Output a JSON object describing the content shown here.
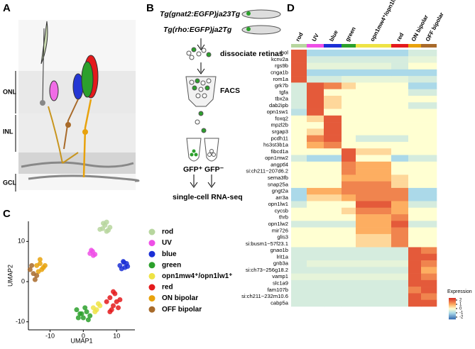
{
  "panel_labels": [
    "A",
    "B",
    "C",
    "D"
  ],
  "panel_a": {
    "layers": [
      "ONL",
      "INL",
      "GCL"
    ]
  },
  "panel_b": {
    "lines": [
      "Tg(gnat2:EGFP)ja23Tg",
      "Tg(rho:EGFP)ja2Tg"
    ],
    "steps": [
      "dissociate retinas",
      "FACS"
    ],
    "tubes": [
      "GFP⁺",
      "GFP⁻"
    ],
    "result": "single-cell RNA-seq"
  },
  "chart_data": [
    {
      "type": "scatter",
      "xlabel": "UMAP1",
      "ylabel": "UMAP2",
      "xlim": [
        -16.5,
        15.5
      ],
      "ylim": [
        -12,
        15
      ],
      "xticks": [
        -10,
        0,
        10
      ],
      "yticks": [
        -10,
        0,
        10
      ],
      "series": [
        {
          "name": "rod",
          "color": "#b7d69e",
          "x": [
            5,
            6,
            7,
            8,
            6.5,
            7.5,
            5.8,
            7
          ],
          "y": [
            13,
            14.5,
            12.5,
            13.5,
            14,
            12.8,
            13.2,
            14.8
          ]
        },
        {
          "name": "UV",
          "color": "#ee4fe6",
          "x": [
            2,
            2.8,
            3.5,
            3,
            2.4
          ],
          "y": [
            7,
            7.5,
            6.8,
            6.5,
            7.8
          ]
        },
        {
          "name": "blue",
          "color": "#1b2fd6",
          "x": [
            11,
            12,
            13,
            12.5,
            11.5,
            13.3,
            12.2
          ],
          "y": [
            4,
            5,
            4.5,
            3.5,
            3.2,
            3.8,
            4.8
          ]
        },
        {
          "name": "green",
          "color": "#2ca02c",
          "x": [
            -2,
            -1,
            0,
            1,
            2,
            -1.5,
            0.5,
            1.5,
            -0.5
          ],
          "y": [
            -7,
            -8,
            -9,
            -7.5,
            -8.5,
            -9,
            -6.5,
            -9.5,
            -8
          ]
        },
        {
          "name": "opn1mw4⁺/opn1lw1⁺",
          "color": "#eee345",
          "x": [
            3,
            4,
            5,
            3.5,
            4.5
          ],
          "y": [
            -6.5,
            -7,
            -6,
            -7.5,
            -5.5
          ]
        },
        {
          "name": "red",
          "color": "#e41a1c",
          "x": [
            7,
            8,
            9,
            10,
            11,
            8.5,
            9.5,
            10.5,
            8,
            9
          ],
          "y": [
            -5,
            -4,
            -6,
            -5,
            -4.5,
            -7,
            -3,
            -6.5,
            -7.5,
            -2.5
          ]
        },
        {
          "name": "ON  bipolar",
          "color": "#e8a20c",
          "x": [
            -14,
            -13,
            -12,
            -12.5,
            -13.5,
            -11.5,
            -13
          ],
          "y": [
            4,
            4.5,
            3.5,
            3,
            2.5,
            4,
            5.5
          ]
        },
        {
          "name": "OFF  bipolar",
          "color": "#a86a2a",
          "x": [
            -16,
            -15,
            -14,
            -15.5,
            -14.5
          ],
          "y": [
            3,
            2,
            1.5,
            4,
            0.5
          ]
        }
      ]
    },
    {
      "type": "heatmap",
      "columns": [
        "rod",
        "UV",
        "blue",
        "green",
        "opn1mw4⁺/opn1lw1⁺",
        "red",
        "ON  bipolar",
        "OFF  bipolar"
      ],
      "column_colors": [
        "#b7d69e",
        "#ee4fe6",
        "#1b2fd6",
        "#2ca02c",
        "#eee345",
        "#e41a1c",
        "#e8a20c",
        "#a86a2a"
      ],
      "rows": [
        "rhol",
        "kcnv2a",
        "rgs9b",
        "cnga1b",
        "rom1a",
        "grk7b",
        "tgfa",
        "tbx2a",
        "dab2ipb",
        "opn1sw1",
        "foxq2",
        "mpzl2b",
        "srgap3",
        "pcdh11",
        "hs3st3b1a",
        "fibcd1a",
        "opn1mw2",
        "angptl4",
        "si:ch211−207d6.2",
        "sema3fb",
        "snap25a",
        "gngt2a",
        "arr3a",
        "opn1lw1",
        "cycsb",
        "thrb",
        "opn1lw2",
        "mir726",
        "glis3",
        "si:busm1−57f23.1",
        "gnao1b",
        "lrit1a",
        "gnb3a",
        "si:ch73−256g18.2",
        "vamp1",
        "slc1a9",
        "fam107b",
        "si:ch211−232m10.6",
        "cabp5a"
      ],
      "values": [
        [
          2,
          -1,
          -1,
          -1,
          -1,
          -1,
          -0.5,
          -0.5
        ],
        [
          2,
          -0.5,
          -0.5,
          -0.5,
          -0.5,
          -0.5,
          -0.3,
          -0.3
        ],
        [
          2,
          -0.3,
          -0.3,
          -0.3,
          -0.3,
          -0.5,
          0,
          0
        ],
        [
          2,
          -1,
          -1,
          -1,
          -1,
          -1,
          -1,
          -1
        ],
        [
          2,
          -0.5,
          -0.5,
          -0.3,
          -0.3,
          -0.3,
          -0.5,
          -0.5
        ],
        [
          -0.5,
          2,
          1.5,
          0.5,
          0,
          0,
          -1,
          -1
        ],
        [
          -0.5,
          2,
          0,
          0,
          0,
          0,
          -0.5,
          -0.5
        ],
        [
          -0.5,
          2,
          0.5,
          0,
          0,
          0,
          0,
          0
        ],
        [
          -0.5,
          2,
          0.5,
          0,
          0,
          0,
          -0.5,
          -0.5
        ],
        [
          -0.8,
          2,
          0,
          0,
          0,
          0,
          0,
          0
        ],
        [
          0,
          0.5,
          2,
          0,
          0,
          0,
          0,
          0
        ],
        [
          0,
          0,
          2,
          0,
          0,
          0,
          0,
          0
        ],
        [
          0,
          0.5,
          2,
          0,
          0,
          0,
          0,
          0
        ],
        [
          0,
          1.5,
          2,
          0,
          -0.5,
          -0.5,
          0,
          0
        ],
        [
          0,
          1,
          1.5,
          0,
          0,
          0,
          0,
          0
        ],
        [
          0,
          0,
          0,
          2,
          0.5,
          0,
          0,
          0
        ],
        [
          -0.5,
          -1,
          -1,
          2,
          0,
          -1,
          -0.5,
          -0.5
        ],
        [
          0,
          0,
          0,
          1.5,
          1,
          0,
          0,
          0
        ],
        [
          0,
          0,
          0,
          1.5,
          1,
          0,
          0,
          0
        ],
        [
          0,
          0,
          0,
          1,
          1,
          0.5,
          0,
          0
        ],
        [
          0,
          0,
          0,
          1.5,
          1.5,
          0.5,
          0,
          0
        ],
        [
          -1,
          1,
          1,
          1.5,
          1.5,
          1.5,
          -1,
          -1
        ],
        [
          -1,
          0.5,
          0.5,
          1,
          1.5,
          1.5,
          -1,
          -1
        ],
        [
          -0.5,
          0,
          0,
          0,
          2,
          1,
          -0.5,
          -0.5
        ],
        [
          0,
          0,
          0,
          0.5,
          1.5,
          1,
          0,
          0
        ],
        [
          0,
          0,
          0,
          0,
          1,
          1.5,
          0,
          0
        ],
        [
          -0.5,
          -0.5,
          -0.5,
          -0.5,
          1,
          2,
          -0.5,
          -0.5
        ],
        [
          0,
          0,
          0,
          0,
          1,
          1.5,
          0,
          0
        ],
        [
          0,
          0,
          0,
          0,
          0.5,
          1.5,
          0,
          0
        ],
        [
          0,
          0,
          0,
          0,
          0.5,
          1.5,
          0,
          0
        ],
        [
          -0.5,
          -0.5,
          -0.5,
          -0.5,
          -0.5,
          -0.5,
          2,
          1.5
        ],
        [
          -0.5,
          -0.5,
          -0.5,
          -0.5,
          -0.5,
          -0.5,
          2,
          2
        ],
        [
          -0.5,
          -0.3,
          -0.3,
          -0.3,
          -0.3,
          -0.3,
          2,
          1.5
        ],
        [
          -0.5,
          -0.5,
          -0.5,
          -0.5,
          -0.5,
          -0.5,
          2,
          1
        ],
        [
          -0.3,
          -0.3,
          -0.3,
          -0.3,
          -0.3,
          -0.3,
          2,
          1.5
        ],
        [
          -0.5,
          -0.5,
          -0.5,
          -0.5,
          -0.5,
          -0.5,
          2,
          2
        ],
        [
          -0.5,
          -0.5,
          -0.5,
          -0.5,
          -0.5,
          -0.5,
          1.5,
          2
        ],
        [
          -0.5,
          -0.5,
          -0.5,
          -0.5,
          -0.5,
          -0.5,
          2,
          1.5
        ],
        [
          -0.5,
          -0.5,
          -0.5,
          -0.5,
          -0.5,
          -0.5,
          2,
          2
        ]
      ],
      "clim": [
        -2.5,
        2.5
      ],
      "colorbar_label": "Expression",
      "colorbar_ticks": [
        2,
        1,
        0,
        -1,
        -2
      ]
    }
  ]
}
